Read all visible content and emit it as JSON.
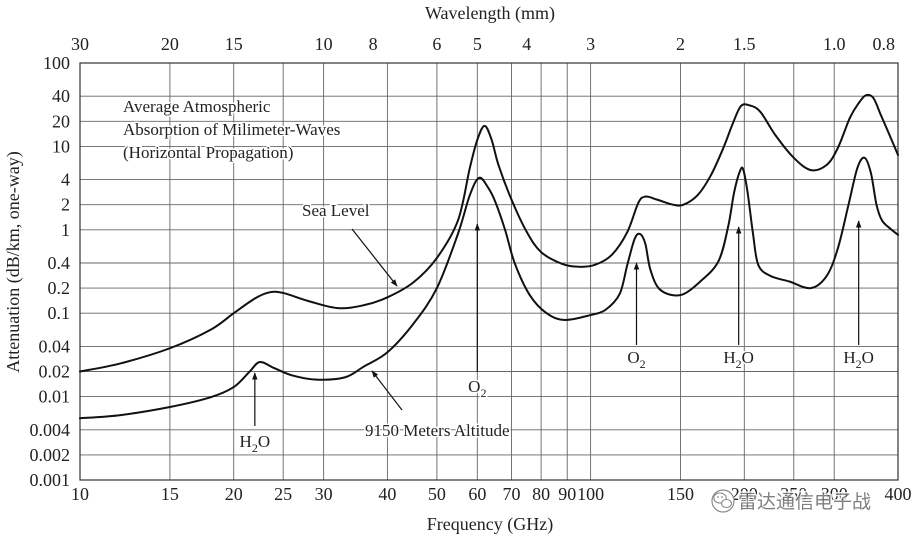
{
  "chart_data": {
    "type": "line",
    "title": "",
    "title_lines": [
      "Average Atmospheric",
      "Absorption of Milimeter-Waves",
      "(Horizontal Propagation)"
    ],
    "xlabel": "Frequency (GHz)",
    "ylabel": "Attenuation (dB/km, one-way)",
    "x2label": "Wavelength (mm)",
    "xscale": "log",
    "yscale": "log",
    "xlim": [
      10,
      400
    ],
    "ylim": [
      0.001,
      100
    ],
    "grid": true,
    "x_ticks": [
      10,
      15,
      20,
      25,
      30,
      40,
      50,
      60,
      70,
      80,
      90,
      100,
      150,
      200,
      250,
      300,
      400
    ],
    "x_tick_labels": [
      "10",
      "15",
      "20",
      "25",
      "30",
      "40",
      "50",
      "60",
      "70",
      "80",
      "90",
      "100",
      "150",
      "200",
      "250",
      "300",
      "400"
    ],
    "x2_ticks": [
      30,
      20,
      15,
      10,
      8,
      6,
      5,
      4,
      3,
      2,
      1.5,
      1.0,
      0.8
    ],
    "x2_tick_labels": [
      "30",
      "20",
      "15",
      "10",
      "8",
      "6",
      "5",
      "4",
      "3",
      "2",
      "1.5",
      "1.0",
      "0.8"
    ],
    "y_ticks": [
      100,
      40,
      20,
      10,
      4,
      2,
      1,
      0.4,
      0.2,
      0.1,
      0.04,
      0.02,
      0.01,
      0.004,
      0.002,
      0.001
    ],
    "y_tick_labels": [
      "100",
      "40",
      "20",
      "10",
      "4",
      "2",
      "1",
      "0.4",
      "0.2",
      "0.1",
      "0.04",
      "0.02",
      "0.01",
      "0.004",
      "0.002",
      "0.001"
    ],
    "series": [
      {
        "name": "Sea Level",
        "x": [
          10,
          12,
          15,
          18,
          20,
          22,
          23.5,
          25,
          28,
          32,
          36,
          40,
          45,
          50,
          55,
          58,
          60,
          62,
          64,
          66,
          70,
          75,
          80,
          88,
          95,
          102,
          110,
          118,
          124,
          128,
          135,
          145,
          152,
          162,
          172,
          182,
          190,
          197,
          205,
          215,
          230,
          250,
          270,
          290,
          305,
          322,
          335,
          346,
          358,
          370,
          385,
          400
        ],
        "y": [
          0.02,
          0.025,
          0.038,
          0.063,
          0.1,
          0.15,
          0.178,
          0.175,
          0.14,
          0.115,
          0.125,
          0.155,
          0.235,
          0.46,
          1.3,
          5.5,
          12,
          17.6,
          12,
          6,
          2.3,
          0.94,
          0.54,
          0.39,
          0.36,
          0.38,
          0.5,
          0.94,
          2.1,
          2.5,
          2.3,
          2.0,
          2.0,
          2.6,
          4.5,
          9.6,
          19,
          30.5,
          31,
          26,
          13.7,
          7.3,
          5.2,
          6,
          9.6,
          22,
          33,
          41,
          38,
          24,
          13.7,
          7.9
        ]
      },
      {
        "name": "9150 Meters Altitude",
        "x": [
          10,
          12,
          15,
          18,
          20,
          21.5,
          22.5,
          24,
          26,
          29,
          33,
          36,
          40,
          45,
          50,
          55,
          58,
          60.5,
          63,
          65,
          68,
          71,
          76,
          82,
          89,
          100,
          107,
          114,
          118,
          122,
          125,
          128,
          131,
          137,
          150,
          164,
          178,
          186,
          191,
          196,
          199,
          203,
          208,
          213,
          225,
          245,
          270,
          290,
          305,
          320,
          333,
          344,
          354,
          363,
          372,
          385,
          400
        ],
        "y": [
          0.0055,
          0.006,
          0.0075,
          0.0098,
          0.013,
          0.02,
          0.026,
          0.022,
          0.018,
          0.016,
          0.017,
          0.023,
          0.034,
          0.075,
          0.2,
          0.9,
          2.6,
          4.2,
          3.2,
          2.2,
          1.0,
          0.4,
          0.165,
          0.1,
          0.083,
          0.095,
          0.11,
          0.17,
          0.38,
          0.78,
          0.89,
          0.68,
          0.33,
          0.19,
          0.165,
          0.24,
          0.42,
          1.1,
          2.8,
          5.0,
          5.3,
          2.8,
          0.9,
          0.38,
          0.28,
          0.24,
          0.2,
          0.28,
          0.6,
          2.0,
          5.5,
          7.3,
          4.8,
          2.0,
          1.3,
          1.05,
          0.87
        ]
      }
    ],
    "absorption_lines": [
      {
        "formula": {
          "base": "H",
          "sub": "2",
          "tail": "O"
        },
        "frequency": 22
      },
      {
        "formula": {
          "base": "O",
          "sub": "2",
          "tail": ""
        },
        "frequency": 60
      },
      {
        "formula": {
          "base": "O",
          "sub": "2",
          "tail": ""
        },
        "frequency": 123
      },
      {
        "formula": {
          "base": "H",
          "sub": "2",
          "tail": "O"
        },
        "frequency": 195
      },
      {
        "formula": {
          "base": "H",
          "sub": "2",
          "tail": "O"
        },
        "frequency": 335
      }
    ],
    "colors": {
      "curves": "#111111",
      "grid": "#666666",
      "text": "#222222"
    }
  },
  "watermark": {
    "text": "雷达通信电子战",
    "icon": "wechat-icon"
  }
}
